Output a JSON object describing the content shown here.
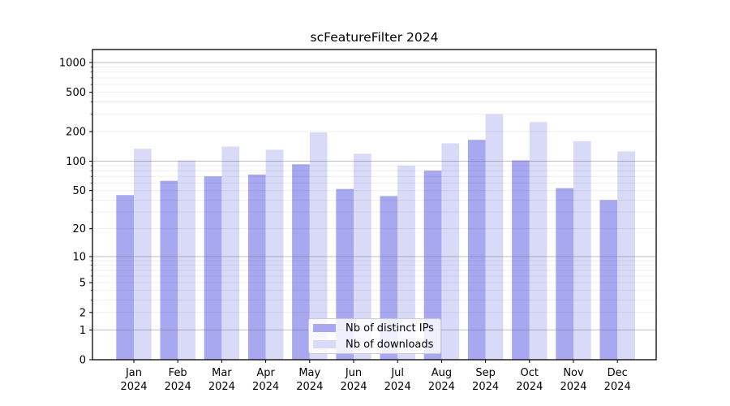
{
  "title": "scFeatureFilter 2024",
  "colors": {
    "bar_ips": "#a8a8f0",
    "bar_downloads": "#d9d9f8",
    "grid_major": "rgba(110,110,110,0.45)",
    "grid_minor": "rgba(0,0,0,0.07)",
    "axis": "#000000",
    "tick_text": "#000000",
    "legend_border": "#cccccc",
    "legend_bg": "rgba(255,255,255,0.8)"
  },
  "chart_data": {
    "type": "bar",
    "title": "scFeatureFilter 2024",
    "categories": [
      "Jan",
      "Feb",
      "Mar",
      "Apr",
      "May",
      "Jun",
      "Jul",
      "Aug",
      "Sep",
      "Oct",
      "Nov",
      "Dec"
    ],
    "year_label": "2024",
    "series": [
      {
        "name": "Nb of distinct IPs",
        "values": [
          45,
          63,
          70,
          73,
          93,
          52,
          44,
          80,
          165,
          102,
          53,
          40
        ]
      },
      {
        "name": "Nb of downloads",
        "values": [
          134,
          102,
          141,
          131,
          196,
          119,
          90,
          152,
          300,
          250,
          160,
          126
        ]
      }
    ],
    "yscale": "log1p",
    "ylim": [
      0,
      1330
    ],
    "yticks_labeled": [
      1000,
      500,
      200,
      100,
      50,
      20,
      10,
      5,
      2,
      1,
      0
    ],
    "grid": "horizontal major at powers of 10, faint log minors",
    "legend_position": "lower center"
  }
}
